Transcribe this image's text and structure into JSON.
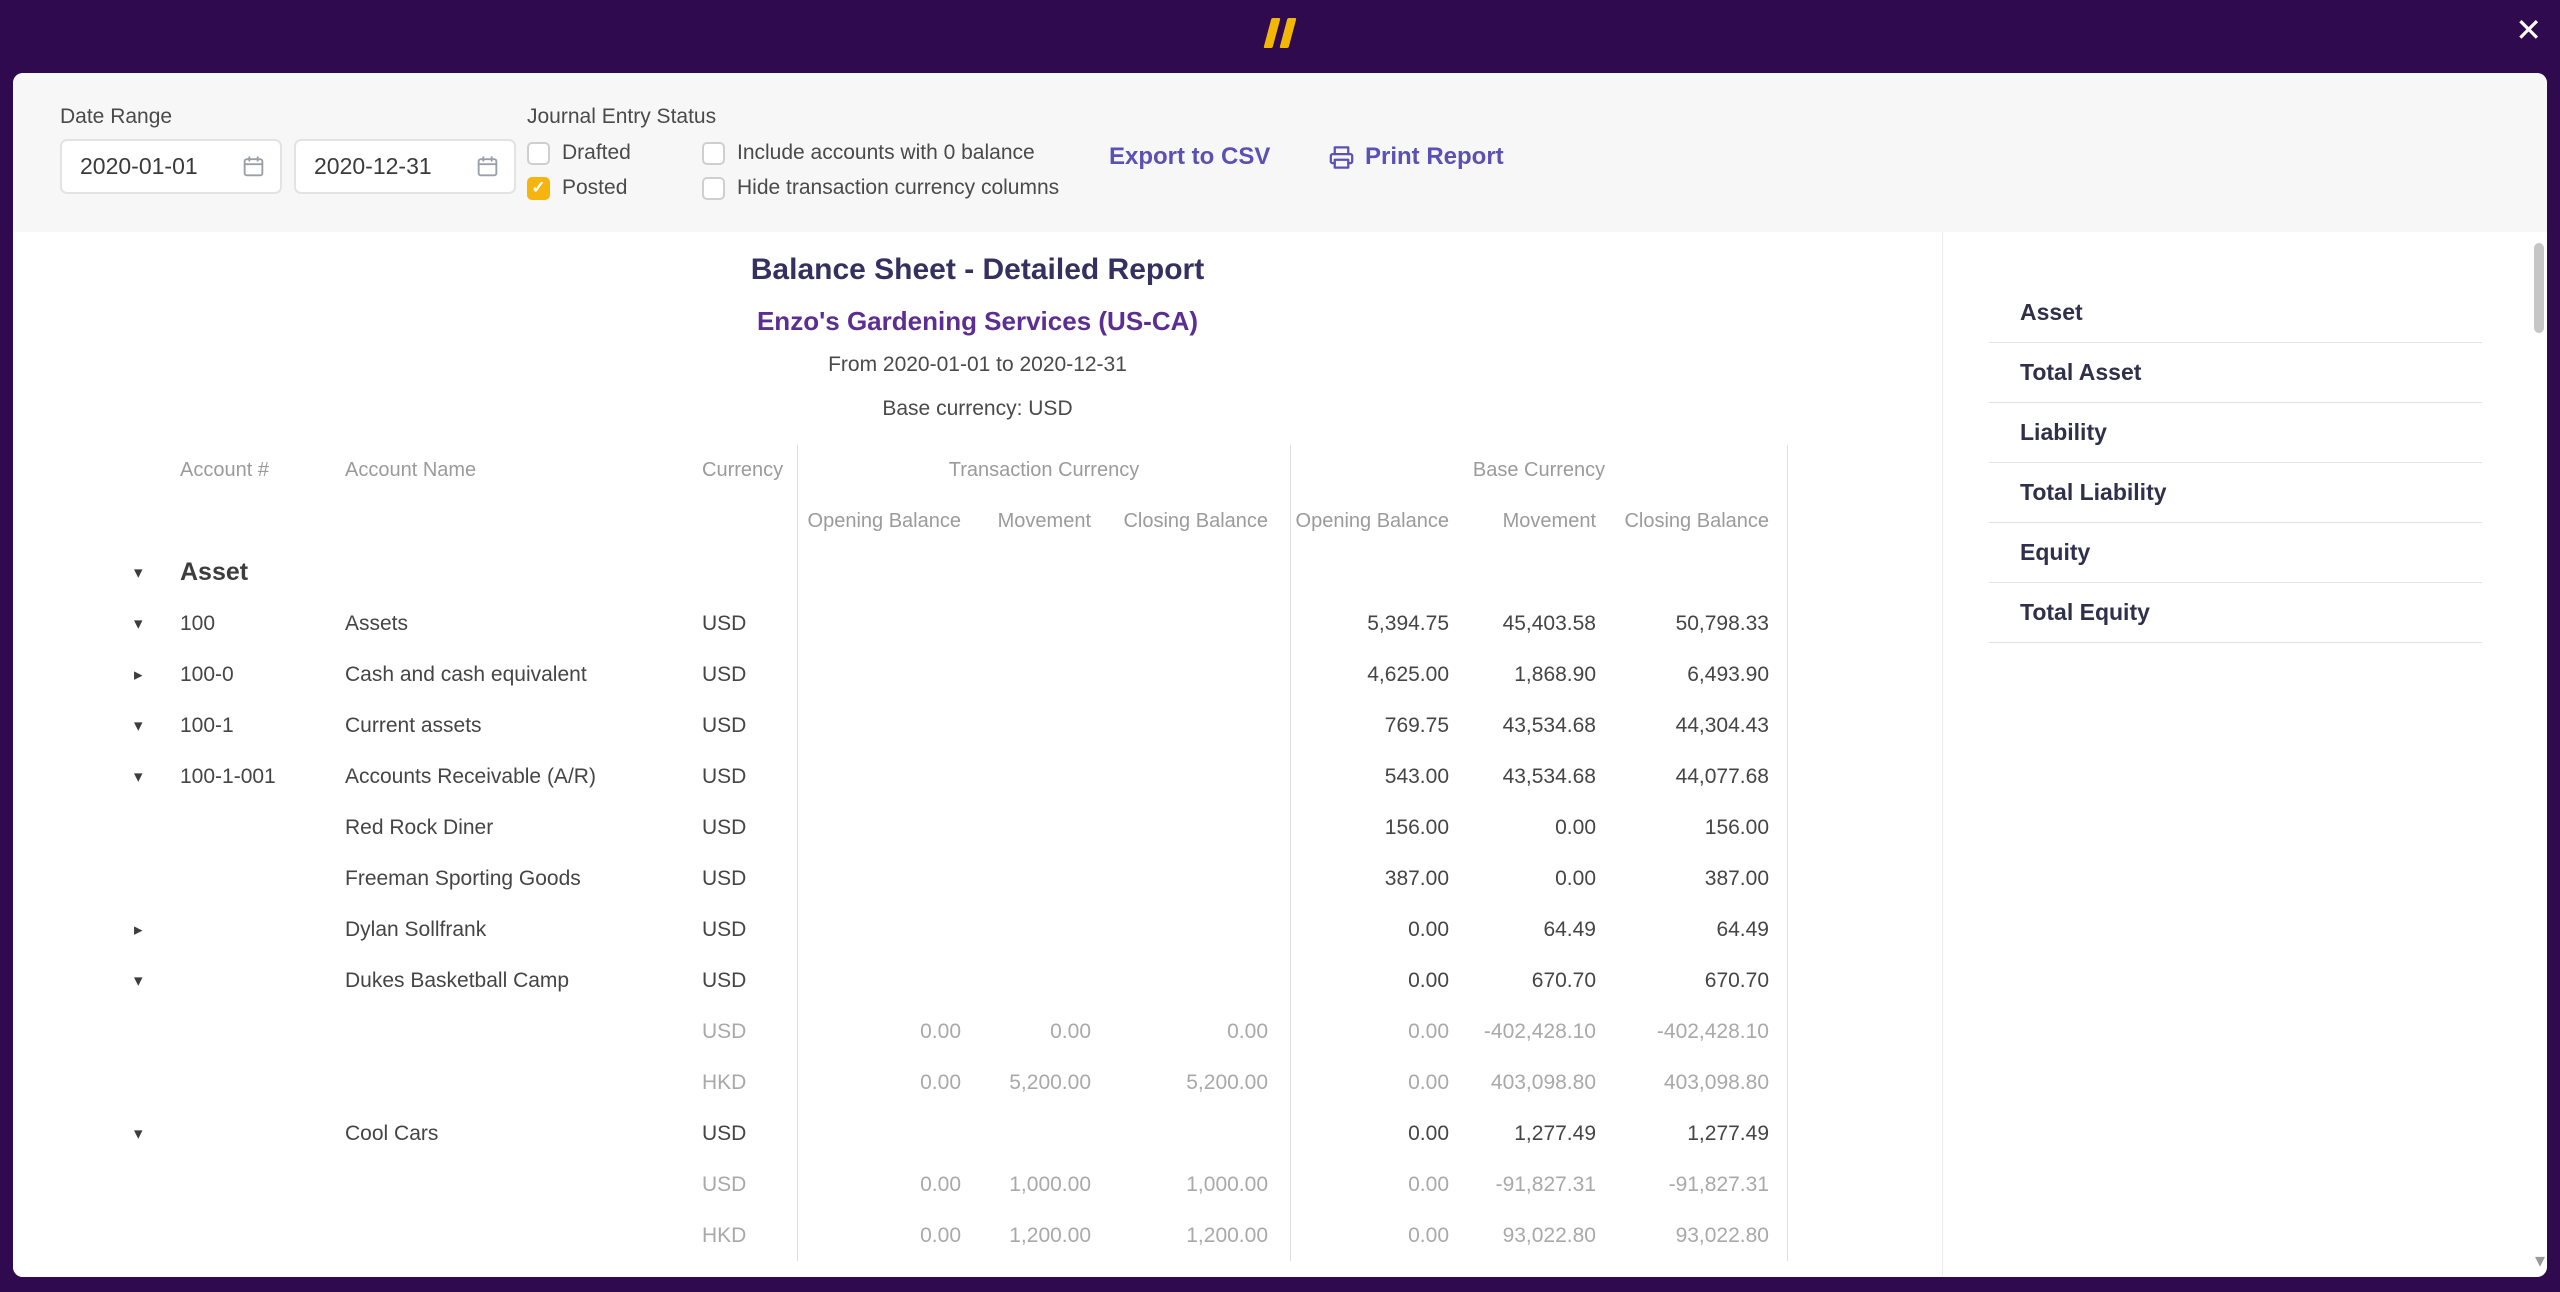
{
  "modal": {
    "close_icon": "✕"
  },
  "toolbar": {
    "date_range_label": "Date Range",
    "date_from": "2020-01-01",
    "date_to": "2020-12-31",
    "journal_status_label": "Journal Entry Status",
    "status_checkboxes": [
      {
        "label": "Drafted",
        "checked": false
      },
      {
        "label": "Posted",
        "checked": true
      }
    ],
    "option_checkboxes": [
      {
        "label": "Include accounts with 0 balance",
        "checked": false
      },
      {
        "label": "Hide transaction currency columns",
        "checked": false
      }
    ],
    "export_csv_label": "Export to CSV",
    "print_report_label": "Print Report"
  },
  "report": {
    "title": "Balance Sheet - Detailed Report",
    "company": "Enzo's Gardening Services (US-CA)",
    "period": "From 2020-01-01 to 2020-12-31",
    "base_currency_note": "Base currency: USD"
  },
  "table": {
    "columns": {
      "account_number": "Account #",
      "account_name": "Account Name",
      "currency": "Currency",
      "transaction_currency_group": "Transaction Currency",
      "base_currency_group": "Base Currency",
      "opening_balance": "Opening Balance",
      "movement": "Movement",
      "closing_balance": "Closing Balance"
    },
    "rows": [
      {
        "type": "group",
        "arrow": "down",
        "number": "Asset",
        "name": "",
        "currency": "",
        "tc": [
          "",
          "",
          ""
        ],
        "bc": [
          "",
          "",
          ""
        ]
      },
      {
        "type": "account",
        "arrow": "down",
        "number": "100",
        "name": "Assets",
        "currency": "USD",
        "tc": [
          "",
          "",
          ""
        ],
        "bc": [
          "5,394.75",
          "45,403.58",
          "50,798.33"
        ]
      },
      {
        "type": "account",
        "arrow": "right",
        "number": "100-0",
        "name": "Cash and cash equivalent",
        "currency": "USD",
        "tc": [
          "",
          "",
          ""
        ],
        "bc": [
          "4,625.00",
          "1,868.90",
          "6,493.90"
        ]
      },
      {
        "type": "account",
        "arrow": "down",
        "number": "100-1",
        "name": "Current assets",
        "currency": "USD",
        "tc": [
          "",
          "",
          ""
        ],
        "bc": [
          "769.75",
          "43,534.68",
          "44,304.43"
        ]
      },
      {
        "type": "account",
        "arrow": "down",
        "number": "100-1-001",
        "name": "Accounts Receivable (A/R)",
        "currency": "USD",
        "tc": [
          "",
          "",
          ""
        ],
        "bc": [
          "543.00",
          "43,534.68",
          "44,077.68"
        ]
      },
      {
        "type": "account",
        "arrow": null,
        "number": "",
        "name": "Red Rock Diner",
        "currency": "USD",
        "tc": [
          "",
          "",
          ""
        ],
        "bc": [
          "156.00",
          "0.00",
          "156.00"
        ]
      },
      {
        "type": "account",
        "arrow": null,
        "number": "",
        "name": "Freeman Sporting Goods",
        "currency": "USD",
        "tc": [
          "",
          "",
          ""
        ],
        "bc": [
          "387.00",
          "0.00",
          "387.00"
        ]
      },
      {
        "type": "account",
        "arrow": "right",
        "number": "",
        "name": "Dylan Sollfrank",
        "currency": "USD",
        "tc": [
          "",
          "",
          ""
        ],
        "bc": [
          "0.00",
          "64.49",
          "64.49"
        ]
      },
      {
        "type": "account",
        "arrow": "down",
        "number": "",
        "name": "Dukes Basketball Camp",
        "currency": "USD",
        "tc": [
          "",
          "",
          ""
        ],
        "bc": [
          "0.00",
          "670.70",
          "670.70"
        ]
      },
      {
        "type": "sub",
        "arrow": null,
        "number": "",
        "name": "",
        "currency": "USD",
        "tc": [
          "0.00",
          "0.00",
          "0.00"
        ],
        "bc": [
          "0.00",
          "-402,428.10",
          "-402,428.10"
        ]
      },
      {
        "type": "sub",
        "arrow": null,
        "number": "",
        "name": "",
        "currency": "HKD",
        "tc": [
          "0.00",
          "5,200.00",
          "5,200.00"
        ],
        "bc": [
          "0.00",
          "403,098.80",
          "403,098.80"
        ]
      },
      {
        "type": "account",
        "arrow": "down",
        "number": "",
        "name": "Cool Cars",
        "currency": "USD",
        "tc": [
          "",
          "",
          ""
        ],
        "bc": [
          "0.00",
          "1,277.49",
          "1,277.49"
        ]
      },
      {
        "type": "sub",
        "arrow": null,
        "number": "",
        "name": "",
        "currency": "USD",
        "tc": [
          "0.00",
          "1,000.00",
          "1,000.00"
        ],
        "bc": [
          "0.00",
          "-91,827.31",
          "-91,827.31"
        ]
      },
      {
        "type": "sub",
        "arrow": null,
        "number": "",
        "name": "",
        "currency": "HKD",
        "tc": [
          "0.00",
          "1,200.00",
          "1,200.00"
        ],
        "bc": [
          "0.00",
          "93,022.80",
          "93,022.80"
        ]
      }
    ]
  },
  "outline": {
    "items": [
      "Asset",
      "Total Asset",
      "Liability",
      "Total Liability",
      "Equity",
      "Total Equity"
    ]
  },
  "colors": {
    "backdrop": "#2f0a4e",
    "accent_purple": "#5b51b5",
    "title": "#363061",
    "company": "#5c2e91",
    "checkbox_checked": "#f6b40e",
    "logo": "#f2b705"
  }
}
